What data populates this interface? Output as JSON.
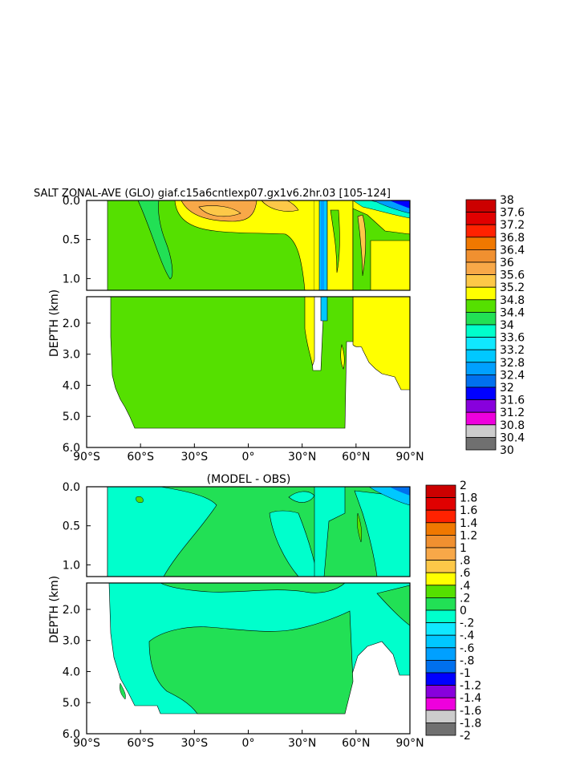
{
  "chart_data": [
    {
      "type": "heatmap",
      "title": "SALT ZONAL-AVE (GLO) giaf.c15a6cntlexp07.gx1v6.2hr.03 [105-124]",
      "ylabel": "DEPTH (km)",
      "xlim": [
        -90,
        90
      ],
      "ylim_upper": [
        0.0,
        1.15
      ],
      "ylim_lower": [
        1.15,
        6.0
      ],
      "x_ticks": [
        "90°S",
        "60°S",
        "30°S",
        "0°",
        "30°N",
        "60°N",
        "90°N"
      ],
      "y_ticks_upper": [
        "0.0",
        "0.5",
        "1.0"
      ],
      "y_ticks_lower": [
        "2.0",
        "3.0",
        "4.0",
        "5.0",
        "6.0"
      ],
      "colorbar": {
        "labels": [
          "38",
          "37.6",
          "37.2",
          "36.8",
          "36.4",
          "36",
          "35.6",
          "35.2",
          "34.8",
          "34.4",
          "34",
          "33.6",
          "33.2",
          "32.8",
          "32.4",
          "32",
          "31.6",
          "31.2",
          "30.8",
          "30.4",
          "30"
        ],
        "colors": [
          "#cc0000",
          "#e00000",
          "#ff2200",
          "#f07800",
          "#f09030",
          "#f8a848",
          "#fdc848",
          "#ffff00",
          "#55e000",
          "#22e055",
          "#00ffcc",
          "#10e8ff",
          "#00c8ff",
          "#00a0ff",
          "#0070ee",
          "#0000ff",
          "#8800dd",
          "#ee00dd",
          "#cccccc",
          "#707070"
        ]
      }
    },
    {
      "type": "heatmap",
      "title": "(MODEL - OBS)",
      "ylabel": "DEPTH (km)",
      "xlim": [
        -90,
        90
      ],
      "ylim_upper": [
        0.0,
        1.15
      ],
      "ylim_lower": [
        1.15,
        6.0
      ],
      "x_ticks": [
        "90°S",
        "60°S",
        "30°S",
        "0°",
        "30°N",
        "60°N",
        "90°N"
      ],
      "y_ticks_upper": [
        "0.0",
        "0.5",
        "1.0"
      ],
      "y_ticks_lower": [
        "2.0",
        "3.0",
        "4.0",
        "5.0",
        "6.0"
      ],
      "colorbar": {
        "labels": [
          "2",
          "1.8",
          "1.6",
          "1.4",
          "1.2",
          "1",
          ".8",
          ".6",
          ".4",
          ".2",
          "0",
          "-.2",
          "-.4",
          "-.6",
          "-.8",
          "-1",
          "-1.2",
          "-1.4",
          "-1.6",
          "-1.8",
          "-2"
        ],
        "colors": [
          "#cc0000",
          "#e00000",
          "#ff2200",
          "#f07800",
          "#f09030",
          "#f8a848",
          "#fdc848",
          "#ffff00",
          "#55e000",
          "#22e055",
          "#00ffcc",
          "#10e8ff",
          "#00c8ff",
          "#00a0ff",
          "#0070ee",
          "#0000ff",
          "#8800dd",
          "#ee00dd",
          "#cccccc",
          "#707070"
        ]
      }
    }
  ]
}
